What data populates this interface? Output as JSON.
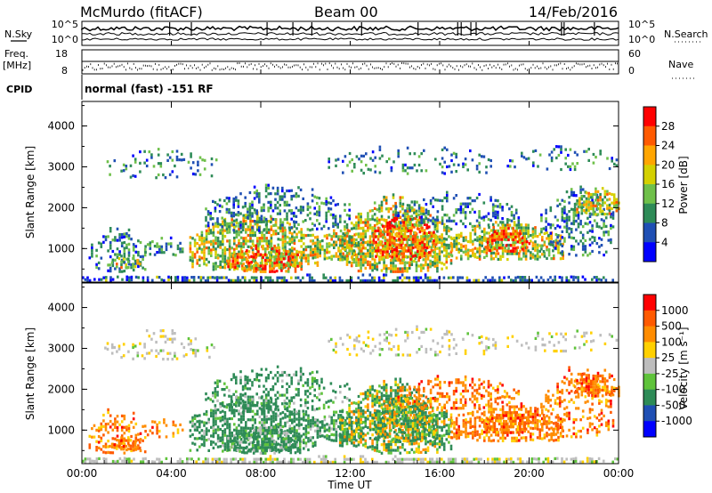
{
  "header": {
    "station": "McMurdo (fitACF)",
    "beam": "Beam 00",
    "date": "14/Feb/2016"
  },
  "left_labels": {
    "nsky": "N.Sky",
    "freq": "Freq.",
    "mhz": "[MHz]",
    "cpid": "CPID"
  },
  "right_labels": {
    "nsearch": "N.Search",
    "nave": "Nave"
  },
  "noise_panel": {
    "ticks_left": [
      "10^5",
      "10^0"
    ],
    "ticks_right": [
      "10^5",
      "10^0"
    ]
  },
  "freq_panel": {
    "ticks_left": [
      "18",
      "8"
    ],
    "ticks_right": [
      "60",
      "0"
    ]
  },
  "cpid_text": "normal (fast) -151 RF",
  "chart_data": [
    {
      "type": "heatmap",
      "name": "Power",
      "ylabel": "Slant Range [km]",
      "ylim": [
        180,
        4600
      ],
      "yticks": [
        "1000",
        "2000",
        "3000",
        "4000"
      ],
      "colorbar_label": "Power [dB]",
      "colorbar_ticks": [
        "28",
        "24",
        "20",
        "16",
        "12",
        "8",
        "4"
      ],
      "colors": [
        "#0000ff",
        "#1f4fb4",
        "#2e8b57",
        "#6fc04a",
        "#d4d000",
        "#ffa500",
        "#ff5a00",
        "#ff0000"
      ]
    },
    {
      "type": "heatmap",
      "name": "Velocity",
      "ylabel": "Slant Range [km]",
      "ylim": [
        180,
        4600
      ],
      "yticks": [
        "1000",
        "2000",
        "3000",
        "4000"
      ],
      "colorbar_label": "Velocity [m s⁻¹]",
      "colorbar_ticks": [
        "1000",
        "500",
        "100",
        "25",
        "-25",
        "-100",
        "-500",
        "-1000"
      ],
      "colors": [
        "#0000ff",
        "#1f4fb4",
        "#2e8b57",
        "#5fc33b",
        "#bdbdbd",
        "#ffd000",
        "#ff8c00",
        "#ff5a00",
        "#ff0000"
      ]
    }
  ],
  "xaxis": {
    "label": "Time UT",
    "ticks": [
      "00:00",
      "04:00",
      "08:00",
      "12:00",
      "16:00",
      "20:00",
      "00:00"
    ]
  }
}
